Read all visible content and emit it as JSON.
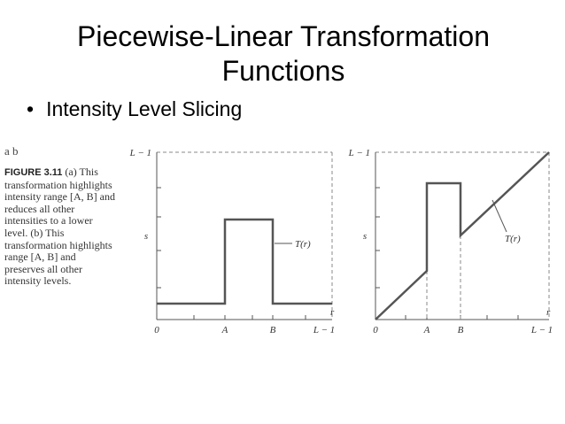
{
  "slide": {
    "title": "Piecewise-Linear Transformation Functions",
    "bullets": [
      "Intensity Level Slicing"
    ]
  },
  "figure": {
    "panel_labels": "a b",
    "caption_label": "FIGURE 3.11",
    "caption_text": "(a) This transformation highlights intensity range [A, B] and reduces all other intensities to a lower level. (b) This transformation highlights range [A, B] and preserves all other intensity levels.",
    "plots": [
      {
        "y_top": "L − 1",
        "y_label": "s",
        "curve_label": "T(r)",
        "x_label": "r",
        "x_ticks": [
          "0",
          "A",
          "B",
          "L − 1"
        ]
      },
      {
        "y_top": "L − 1",
        "y_label": "s",
        "curve_label": "T(r)",
        "x_label": "r",
        "x_ticks": [
          "0",
          "A",
          "B",
          "L − 1"
        ]
      }
    ]
  }
}
